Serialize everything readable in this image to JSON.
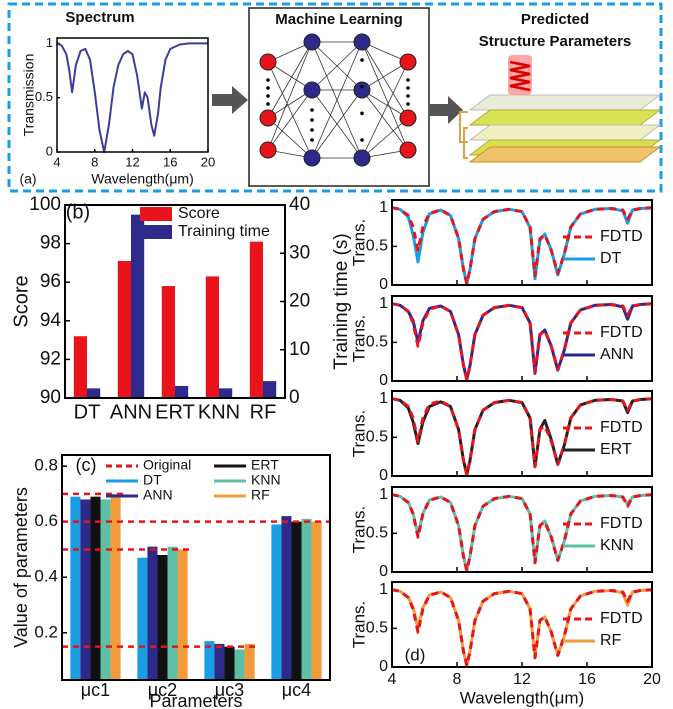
{
  "diagram": {
    "ml_title": "Machine Learning",
    "output_title": [
      "Predicted",
      "Structure Parameters"
    ]
  },
  "chart_data": [
    {
      "type": "line",
      "panel": "(a)",
      "title": "Spectrum",
      "xlabel": "Wavelength(μm)",
      "ylabel": "Transmission",
      "x": [
        4,
        4.5,
        5,
        5.3,
        5.6,
        6,
        6.5,
        7,
        7.5,
        8,
        8.5,
        9,
        9.5,
        10,
        10.5,
        11,
        11.5,
        12,
        12.5,
        13,
        13.3,
        13.6,
        14,
        14.3,
        14.7,
        15,
        15.5,
        16,
        17,
        18,
        19,
        20
      ],
      "values": [
        1,
        0.98,
        0.9,
        0.75,
        0.55,
        0.8,
        0.93,
        0.95,
        0.85,
        0.55,
        0.2,
        0,
        0.25,
        0.6,
        0.8,
        0.9,
        0.93,
        0.9,
        0.7,
        0.4,
        0.55,
        0.5,
        0.25,
        0.15,
        0.35,
        0.6,
        0.85,
        0.95,
        0.99,
        1,
        1,
        1
      ],
      "color": "#3d3d9a",
      "xlim": [
        4,
        20
      ],
      "ylim": [
        0,
        1.05
      ],
      "xticks": [
        4,
        8,
        12,
        16,
        20
      ],
      "yticks": [
        0,
        0.5,
        1
      ]
    },
    {
      "type": "bar",
      "panel": "(b)",
      "ylabel": "Score",
      "y2label": "Training time (s)",
      "categories": [
        "DT",
        "ANN",
        "ERT",
        "KNN",
        "RF"
      ],
      "series": [
        {
          "name": "Score",
          "color": "#e8131b",
          "values": [
            93.2,
            97.1,
            95.8,
            96.3,
            98.1
          ]
        },
        {
          "name": "Training time",
          "color": "#2e2a8c",
          "axis": "y2",
          "values": [
            2,
            38,
            2.5,
            2,
            3.5
          ]
        }
      ],
      "ylim": [
        90,
        100
      ],
      "yticks": [
        90,
        92,
        94,
        96,
        98,
        100
      ],
      "y2lim": [
        0,
        40
      ],
      "y2ticks": [
        0,
        10,
        20,
        30,
        40
      ]
    },
    {
      "type": "bar",
      "panel": "(c)",
      "ylabel": "Value of parameters",
      "xlabel": "Parameters",
      "categories": [
        "μc1",
        "μc2",
        "μc3",
        "μc4"
      ],
      "series": [
        {
          "name": "Original",
          "color": "#e8131b",
          "style": "dashed",
          "values": [
            0.7,
            0.5,
            0.15,
            0.6
          ]
        },
        {
          "name": "DT",
          "color": "#1a9ee3",
          "values": [
            0.69,
            0.47,
            0.17,
            0.59
          ]
        },
        {
          "name": "ANN",
          "color": "#2e2a8c",
          "values": [
            0.68,
            0.51,
            0.16,
            0.62
          ]
        },
        {
          "name": "ERT",
          "color": "#111111",
          "values": [
            0.69,
            0.48,
            0.15,
            0.6
          ]
        },
        {
          "name": "KNN",
          "color": "#5dbfa6",
          "values": [
            0.68,
            0.51,
            0.14,
            0.61
          ]
        },
        {
          "name": "RF",
          "color": "#f39a3a",
          "values": [
            0.7,
            0.5,
            0.16,
            0.6
          ]
        }
      ],
      "ylim": [
        0.03,
        0.84
      ],
      "yticks": [
        0.2,
        0.4,
        0.6,
        0.8
      ]
    },
    {
      "type": "line",
      "ylabel": "Trans.",
      "x": [
        4,
        4.5,
        5,
        5.3,
        5.6,
        5.9,
        6.3,
        7,
        7.6,
        8.1,
        8.4,
        8.6,
        8.8,
        9.1,
        9.6,
        10.3,
        11.2,
        12,
        12.5,
        12.8,
        13.1,
        13.4,
        13.8,
        14.2,
        14.6,
        15,
        15.6,
        16.5,
        17.5,
        18.2,
        18.5,
        18.8,
        19.3,
        20
      ],
      "series": [
        {
          "name": "FDTD",
          "color": "#e8131b",
          "style": "dashed",
          "values": [
            1,
            0.98,
            0.9,
            0.75,
            0.45,
            0.75,
            0.93,
            0.97,
            0.9,
            0.6,
            0.2,
            0.02,
            0.2,
            0.6,
            0.85,
            0.95,
            0.98,
            0.95,
            0.75,
            0.12,
            0.6,
            0.65,
            0.45,
            0.15,
            0.4,
            0.75,
            0.92,
            0.98,
            0.99,
            0.97,
            0.85,
            0.97,
            0.99,
            1
          ]
        },
        {
          "name": "DT",
          "color": "#1a9ee3",
          "values": [
            1,
            0.98,
            0.88,
            0.65,
            0.3,
            0.68,
            0.92,
            0.97,
            0.9,
            0.6,
            0.2,
            0.02,
            0.2,
            0.6,
            0.85,
            0.95,
            0.98,
            0.95,
            0.74,
            0.08,
            0.58,
            0.66,
            0.45,
            0.13,
            0.4,
            0.75,
            0.92,
            0.98,
            0.99,
            0.96,
            0.8,
            0.97,
            0.99,
            1
          ]
        }
      ],
      "xlim": [
        4,
        20
      ],
      "ylim": [
        0,
        1.1
      ],
      "xticks": [
        4,
        8,
        12,
        16,
        20
      ],
      "yticks": [
        0,
        0.5,
        1
      ]
    },
    {
      "type": "line",
      "ylabel": "Trans.",
      "x": [
        4,
        4.5,
        5,
        5.3,
        5.6,
        5.9,
        6.3,
        7,
        7.6,
        8.1,
        8.4,
        8.6,
        8.8,
        9.1,
        9.6,
        10.3,
        11.2,
        12,
        12.5,
        12.8,
        13.1,
        13.4,
        13.8,
        14.2,
        14.6,
        15,
        15.6,
        16.5,
        17.5,
        18.2,
        18.5,
        18.8,
        19.3,
        20
      ],
      "series": [
        {
          "name": "FDTD",
          "color": "#e8131b",
          "style": "dashed",
          "values": [
            1,
            0.98,
            0.9,
            0.75,
            0.45,
            0.75,
            0.93,
            0.97,
            0.9,
            0.6,
            0.2,
            0.02,
            0.2,
            0.6,
            0.85,
            0.95,
            0.98,
            0.95,
            0.75,
            0.12,
            0.6,
            0.65,
            0.45,
            0.15,
            0.4,
            0.75,
            0.92,
            0.98,
            0.99,
            0.97,
            0.85,
            0.97,
            0.99,
            1
          ]
        },
        {
          "name": "ANN",
          "color": "#2e2a8c",
          "values": [
            1,
            0.98,
            0.9,
            0.78,
            0.5,
            0.78,
            0.94,
            0.97,
            0.9,
            0.6,
            0.2,
            0.02,
            0.2,
            0.6,
            0.85,
            0.95,
            0.98,
            0.95,
            0.75,
            0.1,
            0.6,
            0.66,
            0.45,
            0.14,
            0.4,
            0.75,
            0.92,
            0.98,
            0.99,
            0.96,
            0.8,
            0.97,
            0.99,
            1
          ]
        }
      ],
      "xlim": [
        4,
        20
      ],
      "ylim": [
        0,
        1.1
      ],
      "xticks": [
        4,
        8,
        12,
        16,
        20
      ],
      "yticks": [
        0,
        0.5,
        1
      ]
    },
    {
      "type": "line",
      "ylabel": "Trans.",
      "x": [
        4,
        4.5,
        5,
        5.3,
        5.6,
        5.9,
        6.3,
        7,
        7.6,
        8.1,
        8.4,
        8.6,
        8.8,
        9.1,
        9.6,
        10.3,
        11.2,
        12,
        12.5,
        12.8,
        13.1,
        13.4,
        13.8,
        14.2,
        14.6,
        15,
        15.6,
        16.5,
        17.5,
        18.2,
        18.5,
        18.8,
        19.3,
        20
      ],
      "series": [
        {
          "name": "FDTD",
          "color": "#e8131b",
          "style": "dashed",
          "values": [
            1,
            0.98,
            0.9,
            0.75,
            0.45,
            0.75,
            0.93,
            0.97,
            0.9,
            0.6,
            0.2,
            0.02,
            0.2,
            0.6,
            0.85,
            0.95,
            0.98,
            0.95,
            0.75,
            0.12,
            0.6,
            0.65,
            0.45,
            0.15,
            0.4,
            0.75,
            0.92,
            0.98,
            0.99,
            0.97,
            0.85,
            0.97,
            0.99,
            1
          ]
        },
        {
          "name": "ERT",
          "color": "#222222",
          "values": [
            1,
            0.98,
            0.88,
            0.7,
            0.42,
            0.7,
            0.9,
            0.96,
            0.9,
            0.6,
            0.2,
            0.02,
            0.2,
            0.6,
            0.85,
            0.95,
            0.98,
            0.95,
            0.75,
            0.12,
            0.6,
            0.72,
            0.47,
            0.15,
            0.4,
            0.75,
            0.92,
            0.98,
            0.99,
            0.97,
            0.82,
            0.97,
            0.99,
            1
          ]
        }
      ],
      "xlim": [
        4,
        20
      ],
      "ylim": [
        0,
        1.1
      ],
      "xticks": [
        4,
        8,
        12,
        16,
        20
      ],
      "yticks": [
        0,
        0.5,
        1
      ]
    },
    {
      "type": "line",
      "ylabel": "Trans.",
      "x": [
        4,
        4.5,
        5,
        5.3,
        5.6,
        5.9,
        6.3,
        7,
        7.6,
        8.1,
        8.4,
        8.6,
        8.8,
        9.1,
        9.6,
        10.3,
        11.2,
        12,
        12.5,
        12.8,
        13.1,
        13.4,
        13.8,
        14.2,
        14.6,
        15,
        15.6,
        16.5,
        17.5,
        18.2,
        18.5,
        18.8,
        19.3,
        20
      ],
      "series": [
        {
          "name": "FDTD",
          "color": "#e8131b",
          "style": "dashed",
          "values": [
            1,
            0.98,
            0.9,
            0.75,
            0.45,
            0.75,
            0.93,
            0.97,
            0.9,
            0.6,
            0.2,
            0.02,
            0.2,
            0.6,
            0.85,
            0.95,
            0.98,
            0.95,
            0.75,
            0.12,
            0.6,
            0.65,
            0.45,
            0.15,
            0.4,
            0.75,
            0.92,
            0.98,
            0.99,
            0.97,
            0.85,
            0.97,
            0.99,
            1
          ]
        },
        {
          "name": "KNN",
          "color": "#5dbfa6",
          "values": [
            1,
            0.98,
            0.9,
            0.76,
            0.48,
            0.76,
            0.93,
            0.97,
            0.9,
            0.6,
            0.2,
            0.02,
            0.2,
            0.6,
            0.85,
            0.95,
            0.98,
            0.95,
            0.75,
            0.12,
            0.6,
            0.66,
            0.45,
            0.15,
            0.4,
            0.75,
            0.92,
            0.98,
            0.99,
            0.97,
            0.88,
            0.97,
            0.99,
            1
          ]
        }
      ],
      "xlim": [
        4,
        20
      ],
      "ylim": [
        0,
        1.1
      ],
      "xticks": [
        4,
        8,
        12,
        16,
        20
      ],
      "yticks": [
        0,
        0.5,
        1
      ]
    },
    {
      "type": "line",
      "panel": "(d)",
      "ylabel": "Trans.",
      "xlabel": "Wavelength(μm)",
      "x": [
        4,
        4.5,
        5,
        5.3,
        5.6,
        5.9,
        6.3,
        7,
        7.6,
        8.1,
        8.4,
        8.6,
        8.8,
        9.1,
        9.6,
        10.3,
        11.2,
        12,
        12.5,
        12.8,
        13.1,
        13.4,
        13.8,
        14.2,
        14.6,
        15,
        15.6,
        16.5,
        17.5,
        18.2,
        18.5,
        18.8,
        19.3,
        20
      ],
      "series": [
        {
          "name": "FDTD",
          "color": "#e8131b",
          "style": "dashed",
          "values": [
            1,
            0.98,
            0.9,
            0.75,
            0.45,
            0.75,
            0.93,
            0.97,
            0.9,
            0.6,
            0.2,
            0.02,
            0.2,
            0.6,
            0.85,
            0.95,
            0.98,
            0.95,
            0.75,
            0.12,
            0.6,
            0.65,
            0.45,
            0.15,
            0.4,
            0.75,
            0.92,
            0.98,
            0.99,
            0.97,
            0.85,
            0.97,
            0.99,
            1
          ]
        },
        {
          "name": "RF",
          "color": "#f39a3a",
          "values": [
            1,
            0.98,
            0.9,
            0.77,
            0.5,
            0.77,
            0.93,
            0.97,
            0.9,
            0.6,
            0.2,
            0.02,
            0.2,
            0.6,
            0.85,
            0.95,
            0.98,
            0.95,
            0.75,
            0.12,
            0.6,
            0.65,
            0.45,
            0.15,
            0.4,
            0.75,
            0.92,
            0.98,
            0.99,
            0.96,
            0.8,
            0.97,
            0.99,
            1
          ]
        }
      ],
      "xlim": [
        4,
        20
      ],
      "ylim": [
        0,
        1.1
      ],
      "xticks": [
        4,
        8,
        12,
        16,
        20
      ],
      "yticks": [
        0,
        0.5,
        1
      ]
    }
  ]
}
